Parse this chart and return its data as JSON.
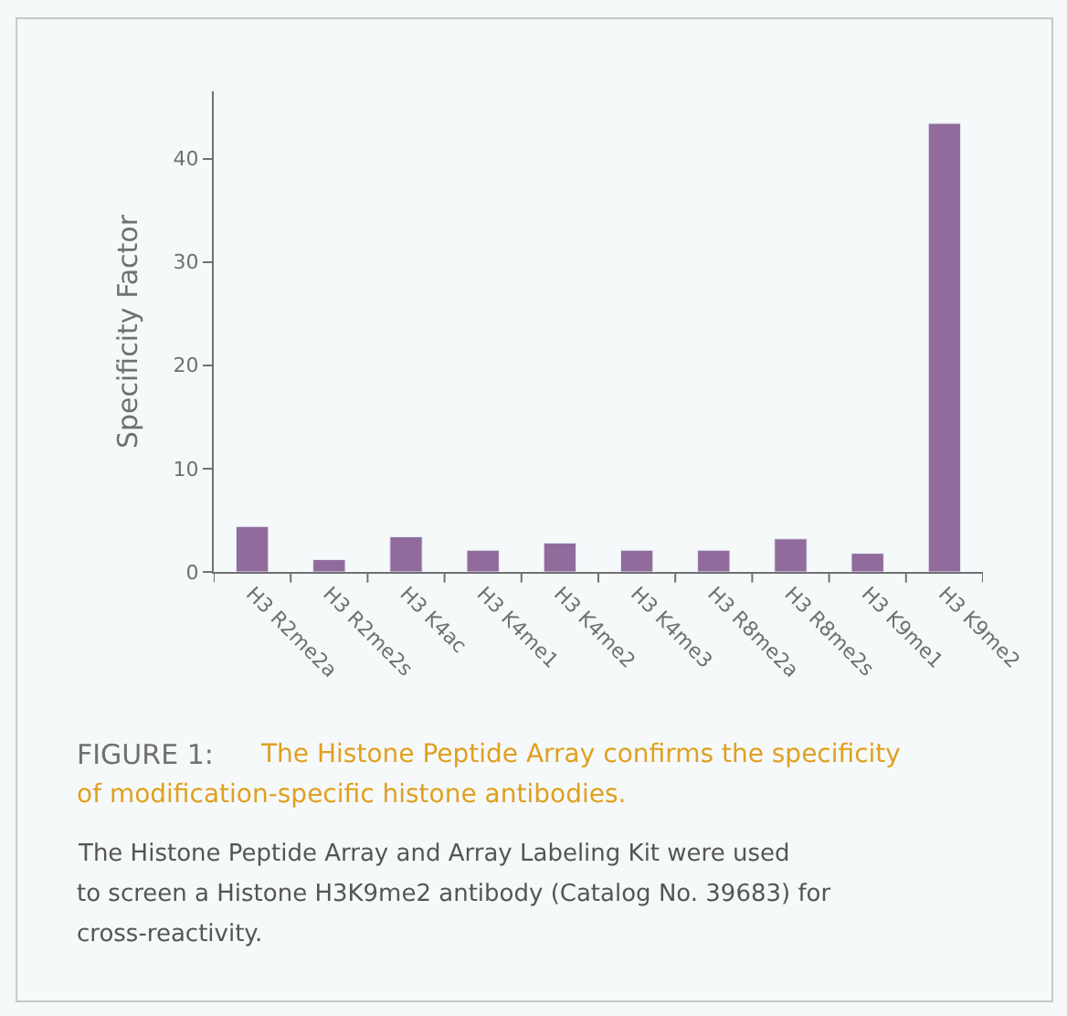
{
  "chart_data": {
    "type": "bar",
    "ylabel": "Specificity Factor",
    "categories": [
      "H3 R2me2a",
      "H3 R2me2s",
      "H3 K4ac",
      "H3 K4me1",
      "H3 K4me2",
      "H3 K4me3",
      "H3 R8me2a",
      "H3 R8me2s",
      "H3 K9me1",
      "H3 K9me2"
    ],
    "values": [
      4.4,
      1.2,
      3.4,
      2.1,
      2.8,
      2.1,
      2.1,
      3.2,
      1.8,
      43.4
    ],
    "color": "#916b9c",
    "ylim": [
      0,
      46.5
    ],
    "yticks": [
      0,
      10,
      20,
      30,
      40
    ],
    "annotations": [
      "FIGURE 1:",
      "The Histone Peptide Array confirms the specificity of modification-specific histone antibodies.",
      "The Histone Peptide Array and Array Labeling Kit were used to screen a Histone H3K9me2 antibody (Catalog No. 39683) for cross-reactivity."
    ]
  }
}
